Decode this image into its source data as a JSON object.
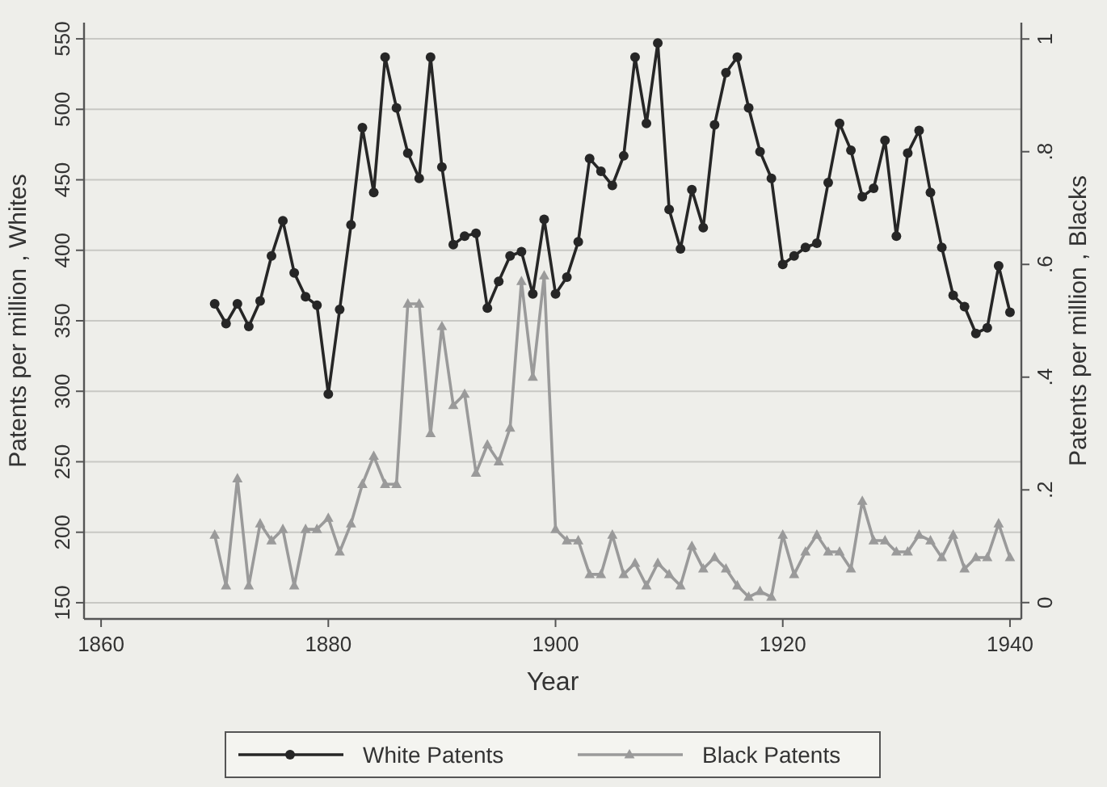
{
  "chart_data": {
    "type": "line",
    "xlabel": "Year",
    "ylabel": "Patents per million , Whites",
    "y2label": "Patents per million , Blacks",
    "x": [
      1870,
      1871,
      1872,
      1873,
      1874,
      1875,
      1876,
      1877,
      1878,
      1879,
      1880,
      1881,
      1882,
      1883,
      1884,
      1885,
      1886,
      1887,
      1888,
      1889,
      1890,
      1891,
      1892,
      1893,
      1894,
      1895,
      1896,
      1897,
      1898,
      1899,
      1900,
      1901,
      1902,
      1903,
      1904,
      1905,
      1906,
      1907,
      1908,
      1909,
      1910,
      1911,
      1912,
      1913,
      1914,
      1915,
      1916,
      1917,
      1918,
      1919,
      1920,
      1921,
      1922,
      1923,
      1924,
      1925,
      1926,
      1927,
      1928,
      1929,
      1930,
      1931,
      1932,
      1933,
      1934,
      1935,
      1936,
      1937,
      1938,
      1939,
      1940
    ],
    "series": [
      {
        "name": "White Patents",
        "color": "#262626",
        "marker": "circle",
        "values": [
          362,
          348,
          362,
          346,
          364,
          396,
          421,
          384,
          367,
          361,
          298,
          358,
          418,
          487,
          441,
          537,
          501,
          469,
          451,
          537,
          459,
          404,
          410,
          412,
          359,
          378,
          396,
          399,
          369,
          422,
          369,
          381,
          406,
          465,
          456,
          446,
          467,
          537,
          490,
          547,
          429,
          401,
          443,
          416,
          489,
          526,
          537,
          501,
          470,
          451,
          390,
          396,
          402,
          405,
          448,
          490,
          471,
          438,
          444,
          478,
          410,
          469,
          485,
          441,
          402,
          368,
          360,
          341,
          345,
          389,
          356
        ]
      },
      {
        "name": "Black Patents",
        "color": "#9a9a9a",
        "marker": "triangle",
        "axis": "y2",
        "values": [
          0.12,
          0.03,
          0.22,
          0.03,
          0.14,
          0.11,
          0.13,
          0.03,
          0.13,
          0.13,
          0.15,
          0.09,
          0.14,
          0.21,
          0.26,
          0.21,
          0.21,
          0.53,
          0.53,
          0.3,
          0.49,
          0.35,
          0.37,
          0.23,
          0.28,
          0.25,
          0.31,
          0.57,
          0.4,
          0.58,
          0.13,
          0.11,
          0.11,
          0.05,
          0.05,
          0.12,
          0.05,
          0.07,
          0.03,
          0.07,
          0.05,
          0.03,
          0.1,
          0.06,
          0.08,
          0.06,
          0.03,
          0.01,
          0.02,
          0.01,
          0.12,
          0.05,
          0.09,
          0.12,
          0.09,
          0.09,
          0.06,
          0.18,
          0.11,
          0.11,
          0.09,
          0.09,
          0.12,
          0.11,
          0.08,
          0.12,
          0.06,
          0.08,
          0.08,
          0.14,
          0.08
        ]
      }
    ],
    "xlim": [
      1858.5,
      1941
    ],
    "xticks": [
      1860,
      1880,
      1900,
      1920,
      1940
    ],
    "ylim": [
      138.5,
      561.5
    ],
    "yticks": [
      150,
      200,
      250,
      300,
      350,
      400,
      450,
      500,
      550
    ],
    "y2lim": [
      -0.029,
      1.029
    ],
    "y2ticks": [
      {
        "value": 0,
        "label": "0"
      },
      {
        "value": 0.2,
        "label": ".2"
      },
      {
        "value": 0.4,
        "label": ".4"
      },
      {
        "value": 0.6,
        "label": ".6"
      },
      {
        "value": 0.8,
        "label": ".8"
      },
      {
        "value": 1,
        "label": "1"
      }
    ],
    "grid": "y",
    "legend": "bottom",
    "line_style": "solid"
  }
}
